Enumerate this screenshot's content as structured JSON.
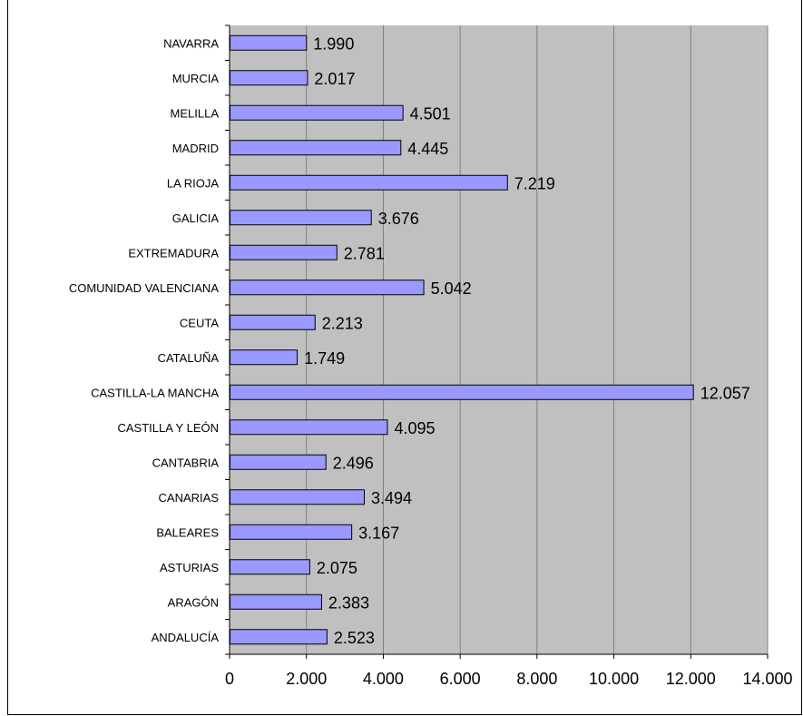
{
  "chart_data": {
    "type": "bar",
    "orientation": "horizontal",
    "categories": [
      "NAVARRA",
      "MURCIA",
      "MELILLA",
      "MADRID",
      "LA RIOJA",
      "GALICIA",
      "EXTREMADURA",
      "COMUNIDAD VALENCIANA",
      "CEUTA",
      "CATALUÑA",
      "CASTILLA-LA MANCHA",
      "CASTILLA Y LEÓN",
      "CANTABRIA",
      "CANARIAS",
      "BALEARES",
      "ASTURIAS",
      "ARAGÓN",
      "ANDALUCÍA"
    ],
    "values": [
      1990,
      2017,
      4501,
      4445,
      7219,
      3676,
      2781,
      5042,
      2213,
      1749,
      12057,
      4095,
      2496,
      3494,
      3167,
      2075,
      2383,
      2523
    ],
    "data_labels": [
      "1.990",
      "2.017",
      "4.501",
      "4.445",
      "7.219",
      "3.676",
      "2.781",
      "5.042",
      "2.213",
      "1.749",
      "12.057",
      "4.095",
      "2.496",
      "3.494",
      "3.167",
      "2.075",
      "2.383",
      "2.523"
    ],
    "xlim": [
      0,
      14000
    ],
    "x_ticks": [
      0,
      2000,
      4000,
      6000,
      8000,
      10000,
      12000,
      14000
    ],
    "x_tick_labels": [
      "0",
      "2.000",
      "4.000",
      "6.000",
      "8.000",
      "10.000",
      "12.000",
      "14.000"
    ],
    "title": "",
    "xlabel": "",
    "ylabel": "",
    "grid": "vertical",
    "legend": "none",
    "colors": {
      "bar_fill": "#9999FF",
      "bar_stroke": "#000000",
      "plot_background": "#C0C0C0",
      "gridline": "#808080"
    }
  }
}
